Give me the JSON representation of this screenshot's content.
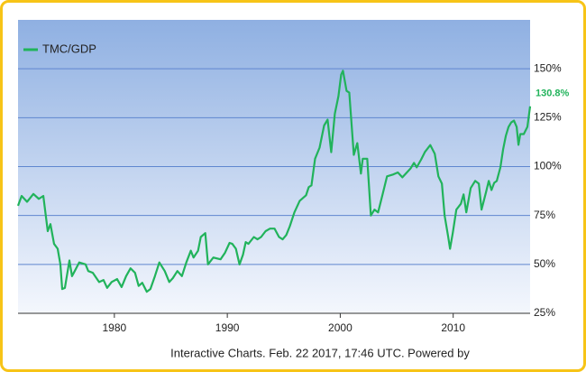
{
  "chart_data": {
    "type": "line",
    "x": [
      1971.47,
      1971.79,
      1972.27,
      1972.83,
      1973.31,
      1973.71,
      1974.1,
      1974.34,
      1974.66,
      1974.98,
      1975.22,
      1975.38,
      1975.62,
      1976.02,
      1976.25,
      1976.49,
      1976.89,
      1977.45,
      1977.69,
      1978.09,
      1978.65,
      1979.04,
      1979.36,
      1979.76,
      1980.24,
      1980.64,
      1981.04,
      1981.43,
      1981.83,
      1982.15,
      1982.47,
      1982.87,
      1983.19,
      1983.59,
      1983.98,
      1984.46,
      1984.86,
      1985.18,
      1985.58,
      1985.98,
      1986.37,
      1986.77,
      1987.01,
      1987.41,
      1987.65,
      1988.05,
      1988.29,
      1988.76,
      1989.4,
      1989.8,
      1990.2,
      1990.44,
      1990.76,
      1991.08,
      1991.39,
      1991.63,
      1991.87,
      1992.35,
      1992.67,
      1992.99,
      1993.39,
      1993.78,
      1994.18,
      1994.58,
      1994.9,
      1995.22,
      1995.54,
      1995.94,
      1996.41,
      1996.97,
      1997.21,
      1997.45,
      1997.77,
      1998.17,
      1998.57,
      1998.88,
      1999.2,
      1999.52,
      1999.84,
      2000.08,
      2000.24,
      2000.56,
      2000.8,
      2001.2,
      2001.51,
      2001.83,
      2001.99,
      2002.39,
      2002.71,
      2003.03,
      2003.35,
      2003.75,
      2004.14,
      2004.7,
      2005.1,
      2005.5,
      2005.9,
      2006.22,
      2006.53,
      2006.77,
      2007.17,
      2007.49,
      2007.97,
      2008.37,
      2008.69,
      2009.0,
      2009.24,
      2009.56,
      2009.72,
      2009.96,
      2010.28,
      2010.68,
      2010.92,
      2011.16,
      2011.55,
      2011.95,
      2012.27,
      2012.51,
      2012.91,
      2013.15,
      2013.39,
      2013.63,
      2013.86,
      2014.18,
      2014.42,
      2014.66,
      2014.9,
      2015.14,
      2015.38,
      2015.62,
      2015.78,
      2015.94,
      2016.25,
      2016.57,
      2016.81
    ],
    "series": [
      {
        "name": "TMC/GDP",
        "color": "#21b35b",
        "values": [
          80,
          85,
          82,
          86,
          83.5,
          85,
          67,
          70.6,
          60.5,
          58,
          50,
          37.4,
          38,
          52,
          44,
          46.6,
          51,
          50,
          46.6,
          45.7,
          41,
          42,
          38,
          41,
          42.5,
          38.4,
          44,
          48,
          45.7,
          39,
          40.6,
          36,
          37.4,
          44,
          51,
          46.6,
          41,
          43,
          46.6,
          44,
          51,
          57,
          53.5,
          57,
          64,
          66,
          50,
          53.5,
          52.6,
          56,
          61,
          60.5,
          58,
          50,
          55,
          61.4,
          60.5,
          64,
          62.8,
          64,
          67,
          68.3,
          68.3,
          64,
          62.8,
          65,
          69.6,
          76.6,
          82.5,
          85.3,
          89.5,
          90.4,
          104,
          109.7,
          121,
          124,
          107.4,
          127,
          136,
          147,
          149,
          138.7,
          137.8,
          106,
          112,
          96.4,
          104,
          104,
          75,
          78,
          76.6,
          85.8,
          95,
          96,
          97,
          94.5,
          97,
          99,
          101.9,
          99.6,
          103.7,
          107.4,
          111,
          106.5,
          95,
          91.3,
          75,
          64,
          58,
          66,
          78,
          81,
          85.8,
          76.6,
          89,
          92.7,
          91.3,
          78,
          87,
          92.7,
          88,
          91.7,
          92.7,
          99.6,
          108.8,
          115.7,
          120.3,
          122.6,
          123.5,
          120.3,
          111.1,
          116.6,
          116.6,
          120.3,
          130.8
        ]
      }
    ],
    "xlim": [
      1971.47,
      2016.81
    ],
    "xticks": [
      1980,
      1990,
      2000,
      2010
    ],
    "ylim": [
      25,
      175
    ],
    "yticks": [
      {
        "value": 25,
        "label": "25%"
      },
      {
        "value": 50,
        "label": "50%"
      },
      {
        "value": 75,
        "label": "75%"
      },
      {
        "value": 100,
        "label": "100%"
      },
      {
        "value": 125,
        "label": "125%"
      },
      {
        "value": 150,
        "label": "150%"
      }
    ],
    "grid": true,
    "legend": "top-left",
    "annotations": [
      {
        "text": "130.8%",
        "x": 2016.81,
        "y": 130.8
      }
    ],
    "footer": "Interactive Charts. Feb. 22 2017, 17:46 UTC. Powered by"
  }
}
